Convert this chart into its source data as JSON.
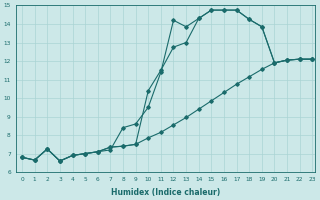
{
  "xlabel": "Humidex (Indice chaleur)",
  "bg_color": "#cce8e8",
  "line_color": "#1a6b6b",
  "grid_color": "#aad4d4",
  "xlim": [
    -0.5,
    23.2
  ],
  "ylim": [
    6,
    15
  ],
  "xticks": [
    0,
    1,
    2,
    3,
    4,
    5,
    6,
    7,
    8,
    9,
    10,
    11,
    12,
    13,
    14,
    15,
    16,
    17,
    18,
    19,
    20,
    21,
    22,
    23
  ],
  "yticks": [
    6,
    7,
    8,
    9,
    10,
    11,
    12,
    13,
    14,
    15
  ],
  "line1_x": [
    0,
    1,
    2,
    3,
    4,
    5,
    6,
    7,
    8,
    9,
    10,
    11,
    12,
    13,
    14,
    15,
    16,
    17,
    18,
    19,
    20,
    21,
    22,
    23
  ],
  "line1_y": [
    6.8,
    6.65,
    7.25,
    6.6,
    6.9,
    7.0,
    7.1,
    7.2,
    8.4,
    8.6,
    9.5,
    11.4,
    14.2,
    13.85,
    14.3,
    14.75,
    14.75,
    14.75,
    14.25,
    13.85,
    11.9,
    12.05,
    12.1,
    12.1
  ],
  "line2_x": [
    0,
    1,
    2,
    3,
    4,
    5,
    6,
    7,
    8,
    9,
    10,
    11,
    12,
    13,
    14,
    15,
    16,
    17,
    18,
    19,
    20,
    21,
    22,
    23
  ],
  "line2_y": [
    6.8,
    6.65,
    7.25,
    6.6,
    6.9,
    7.0,
    7.1,
    7.35,
    7.4,
    7.5,
    10.4,
    11.5,
    12.75,
    13.0,
    14.3,
    14.75,
    14.75,
    14.75,
    14.25,
    13.85,
    11.9,
    12.05,
    12.1,
    12.1
  ],
  "line3_x": [
    0,
    1,
    2,
    3,
    4,
    5,
    6,
    7,
    8,
    9,
    10,
    11,
    12,
    13,
    14,
    15,
    16,
    17,
    18,
    19,
    20,
    21,
    22,
    23
  ],
  "line3_y": [
    6.8,
    6.65,
    7.25,
    6.6,
    6.9,
    7.0,
    7.1,
    7.35,
    7.4,
    7.5,
    7.85,
    8.15,
    8.55,
    8.95,
    9.4,
    9.85,
    10.3,
    10.75,
    11.15,
    11.55,
    11.9,
    12.05,
    12.1,
    12.1
  ]
}
